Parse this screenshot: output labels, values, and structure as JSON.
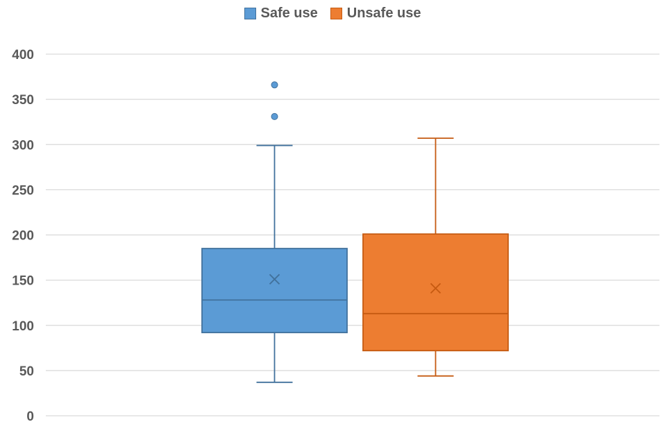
{
  "chart_data": {
    "type": "box",
    "title": "",
    "xlabel": "",
    "ylabel": "",
    "ylim": [
      0,
      400
    ],
    "yticks": [
      0,
      50,
      100,
      150,
      200,
      250,
      300,
      350,
      400
    ],
    "grid": true,
    "legend_position": "top",
    "series": [
      {
        "name": "Safe use",
        "color": "#5B9BD5",
        "edge_color": "#41719C",
        "whisker_low": 37,
        "q1": 92,
        "median": 128,
        "q3": 185,
        "whisker_high": 299,
        "mean": 151,
        "outliers": [
          331,
          366
        ]
      },
      {
        "name": "Unsafe use",
        "color": "#ED7D31",
        "edge_color": "#C55A11",
        "whisker_low": 44,
        "q1": 72,
        "median": 113,
        "q3": 201,
        "whisker_high": 307,
        "mean": 141,
        "outliers": []
      }
    ]
  }
}
